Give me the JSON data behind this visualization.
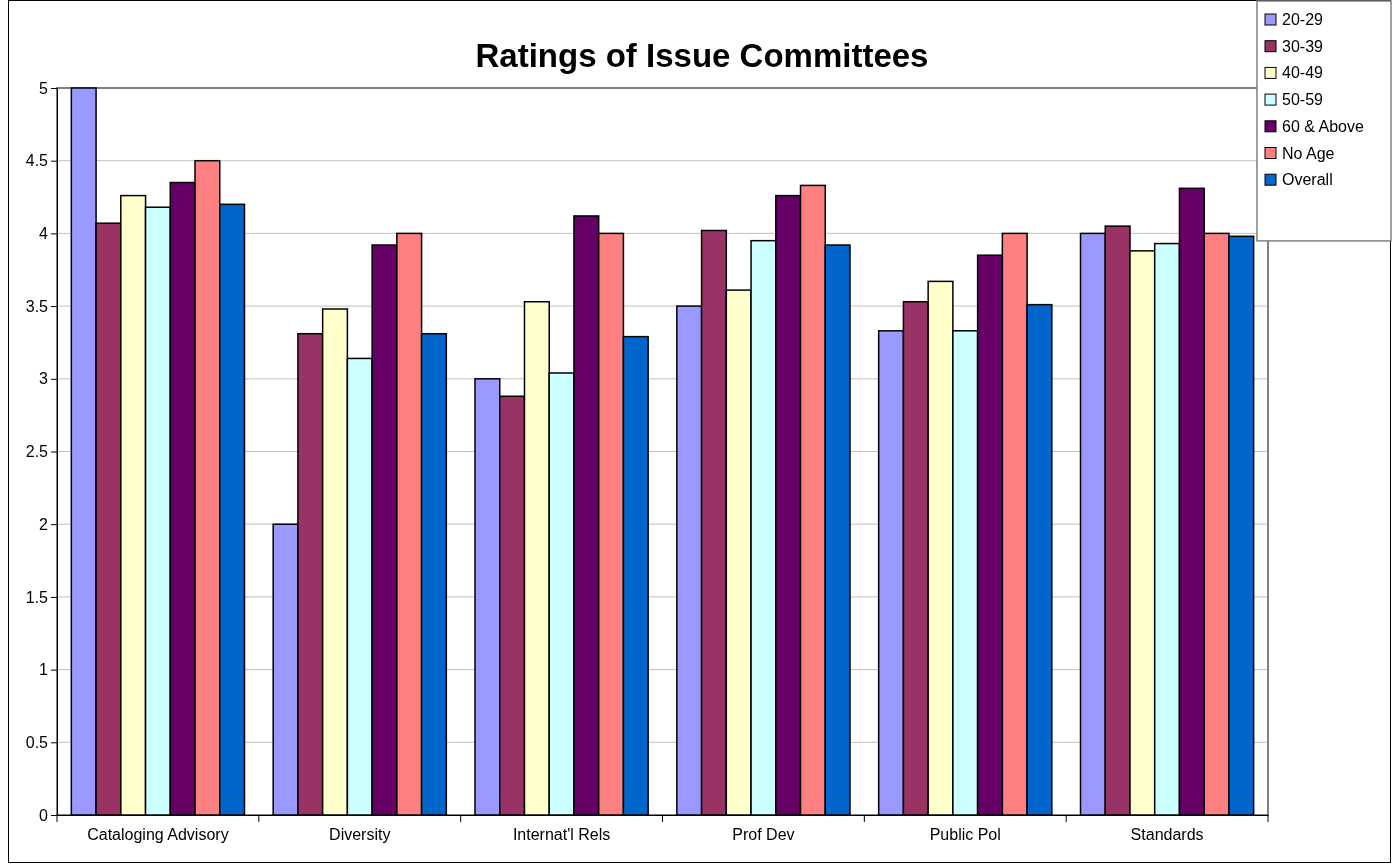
{
  "chart_data": {
    "type": "bar",
    "title": "Ratings of Issue Committees",
    "categories": [
      "Cataloging Advisory",
      "Diversity",
      "Internat'l Rels",
      "Prof Dev",
      "Public Pol",
      "Standards"
    ],
    "series": [
      {
        "name": "20-29",
        "color": "#9999ff",
        "values": [
          5,
          2,
          3,
          3.5,
          3.33,
          4
        ]
      },
      {
        "name": "30-39",
        "color": "#993366",
        "values": [
          4.07,
          3.31,
          2.88,
          4.02,
          3.53,
          4.05
        ]
      },
      {
        "name": "40-49",
        "color": "#ffffcc",
        "values": [
          4.26,
          3.48,
          3.53,
          3.61,
          3.67,
          3.88
        ]
      },
      {
        "name": "50-59",
        "color": "#ccffff",
        "values": [
          4.18,
          3.14,
          3.04,
          3.95,
          3.33,
          3.93
        ]
      },
      {
        "name": "60 & Above",
        "color": "#660066",
        "values": [
          4.35,
          3.92,
          4.12,
          4.26,
          3.85,
          4.31
        ]
      },
      {
        "name": "No Age",
        "color": "#ff8080",
        "values": [
          4.5,
          4,
          4,
          4.33,
          4,
          4
        ]
      },
      {
        "name": "Overall",
        "color": "#0066cc",
        "values": [
          4.2,
          3.31,
          3.29,
          3.92,
          3.51,
          3.98
        ]
      }
    ],
    "ylim": [
      0,
      5
    ],
    "yticks": [
      0,
      0.5,
      1,
      1.5,
      2,
      2.5,
      3,
      3.5,
      4,
      4.5,
      5
    ],
    "grid": "y",
    "legend": "top right"
  }
}
